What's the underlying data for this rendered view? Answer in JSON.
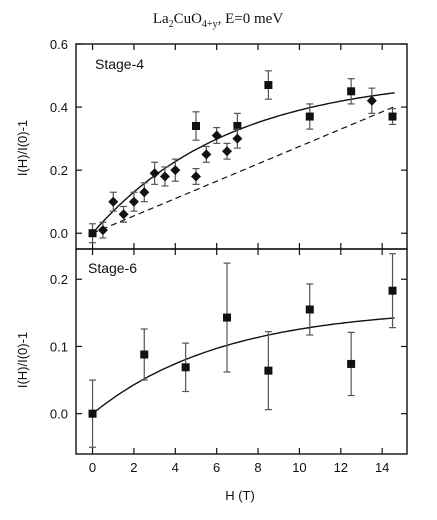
{
  "chart_data": {
    "title_base": "La",
    "title_sub1": "2",
    "title_mid": "CuO",
    "title_sub2": "4+y",
    "title_tail": ", E=0 meV",
    "xlabel": "H (T)",
    "x_ticks": [
      "0",
      "2",
      "4",
      "6",
      "8",
      "10",
      "12",
      "14"
    ],
    "xlim": [
      -0.8,
      15.2
    ],
    "panels": [
      {
        "label": "Stage-4",
        "type": "scatter",
        "ylabel": "I(H)/I(0)-1",
        "ylim": [
          -0.05,
          0.6
        ],
        "y_ticks": [
          "0.0",
          "0.2",
          "0.4",
          "0.6"
        ],
        "series": [
          {
            "marker": "square",
            "points": [
              {
                "x": 0,
                "y": 0.0,
                "err": 0.03
              },
              {
                "x": 5,
                "y": 0.34,
                "err": 0.045
              },
              {
                "x": 7,
                "y": 0.34,
                "err": 0.04
              },
              {
                "x": 8.5,
                "y": 0.47,
                "err": 0.045
              },
              {
                "x": 10.5,
                "y": 0.37,
                "err": 0.04
              },
              {
                "x": 12.5,
                "y": 0.45,
                "err": 0.04
              },
              {
                "x": 14.5,
                "y": 0.37,
                "err": 0.025
              }
            ]
          },
          {
            "marker": "diamond",
            "points": [
              {
                "x": 0.5,
                "y": 0.01,
                "err": 0.025
              },
              {
                "x": 1,
                "y": 0.1,
                "err": 0.03
              },
              {
                "x": 1.5,
                "y": 0.06,
                "err": 0.025
              },
              {
                "x": 2,
                "y": 0.1,
                "err": 0.03
              },
              {
                "x": 2.5,
                "y": 0.13,
                "err": 0.03
              },
              {
                "x": 3,
                "y": 0.19,
                "err": 0.035
              },
              {
                "x": 3.5,
                "y": 0.18,
                "err": 0.03
              },
              {
                "x": 4,
                "y": 0.2,
                "err": 0.035
              },
              {
                "x": 5,
                "y": 0.18,
                "err": 0.025
              },
              {
                "x": 5.5,
                "y": 0.25,
                "err": 0.025
              },
              {
                "x": 6,
                "y": 0.31,
                "err": 0.025
              },
              {
                "x": 6.5,
                "y": 0.26,
                "err": 0.025
              },
              {
                "x": 7,
                "y": 0.3,
                "err": 0.03
              },
              {
                "x": 13.5,
                "y": 0.42,
                "err": 0.04
              }
            ]
          }
        ],
        "fits": [
          {
            "style": "solid",
            "form": "a*(1-exp(-x/b))",
            "a": 0.5,
            "b": 6.6
          },
          {
            "style": "dashed",
            "form": "c*x",
            "c": 0.0275
          }
        ]
      },
      {
        "label": "Stage-6",
        "type": "scatter",
        "ylabel": "I(H)/I(0)-1",
        "ylim": [
          -0.06,
          0.245
        ],
        "y_ticks": [
          "0.0",
          "0.1",
          "0.2"
        ],
        "series": [
          {
            "marker": "square",
            "points": [
              {
                "x": 0,
                "y": 0.0,
                "err": 0.05
              },
              {
                "x": 2.5,
                "y": 0.088,
                "err": 0.038
              },
              {
                "x": 4.5,
                "y": 0.069,
                "err": 0.036
              },
              {
                "x": 6.5,
                "y": 0.143,
                "err": 0.081
              },
              {
                "x": 8.5,
                "y": 0.064,
                "err": 0.058
              },
              {
                "x": 10.5,
                "y": 0.155,
                "err": 0.038
              },
              {
                "x": 12.5,
                "y": 0.074,
                "err": 0.047
              },
              {
                "x": 14.5,
                "y": 0.183,
                "err": 0.055
              }
            ]
          }
        ],
        "fits": [
          {
            "style": "solid",
            "form": "a*(1-exp(-x/b))",
            "a": 0.158,
            "b": 6.3
          }
        ]
      }
    ]
  }
}
